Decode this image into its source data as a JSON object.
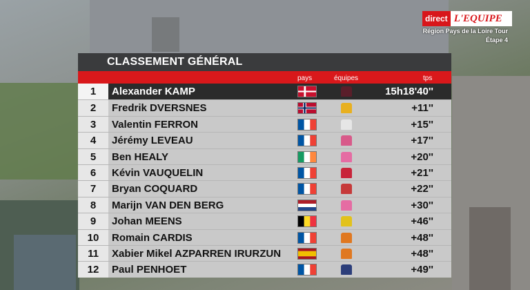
{
  "broadcast": {
    "logo_direct": "direct",
    "logo_equipe": "L'EQUIPE",
    "race_title": "Région Pays de la Loire Tour",
    "race_stage": "Étape 4"
  },
  "standings": {
    "title": "CLASSEMENT GÉNÉRAL",
    "columns": {
      "pays": "pays",
      "equipes": "équipes",
      "tps": "tps"
    },
    "rows": [
      {
        "rank": "1",
        "name": "Alexander KAMP",
        "country": "denmark",
        "jersey_color": "#5a1e2a",
        "time": "15h18'40''"
      },
      {
        "rank": "2",
        "name": "Fredrik DVERSNES",
        "country": "norway",
        "jersey_color": "#e8b020",
        "time": "+11''"
      },
      {
        "rank": "3",
        "name": "Valentin FERRON",
        "country": "france",
        "jersey_color": "#e6e6e6",
        "time": "+15''"
      },
      {
        "rank": "4",
        "name": "Jérémy LEVEAU",
        "country": "france",
        "jersey_color": "#d85a8a",
        "time": "+17''"
      },
      {
        "rank": "5",
        "name": "Ben HEALY",
        "country": "ireland",
        "jersey_color": "#e56ca3",
        "time": "+20''"
      },
      {
        "rank": "6",
        "name": "Kévin VAUQUELIN",
        "country": "france",
        "jersey_color": "#c8243a",
        "time": "+21''"
      },
      {
        "rank": "7",
        "name": "Bryan COQUARD",
        "country": "france",
        "jersey_color": "#c63a3a",
        "time": "+22''"
      },
      {
        "rank": "8",
        "name": "Marijn VAN DEN BERG",
        "country": "netherlands",
        "jersey_color": "#e56ca3",
        "time": "+30''"
      },
      {
        "rank": "9",
        "name": "Johan MEENS",
        "country": "belgium",
        "jersey_color": "#e2c21c",
        "time": "+46''"
      },
      {
        "rank": "10",
        "name": "Romain CARDIS",
        "country": "france",
        "jersey_color": "#e07820",
        "time": "+48''"
      },
      {
        "rank": "11",
        "name": "Xabier Mikel AZPARREN IRURZUN",
        "country": "spain",
        "jersey_color": "#e07820",
        "time": "+48''"
      },
      {
        "rank": "12",
        "name": "Paul PENHOET",
        "country": "france",
        "jersey_color": "#2c3e7a",
        "time": "+49''"
      }
    ]
  }
}
